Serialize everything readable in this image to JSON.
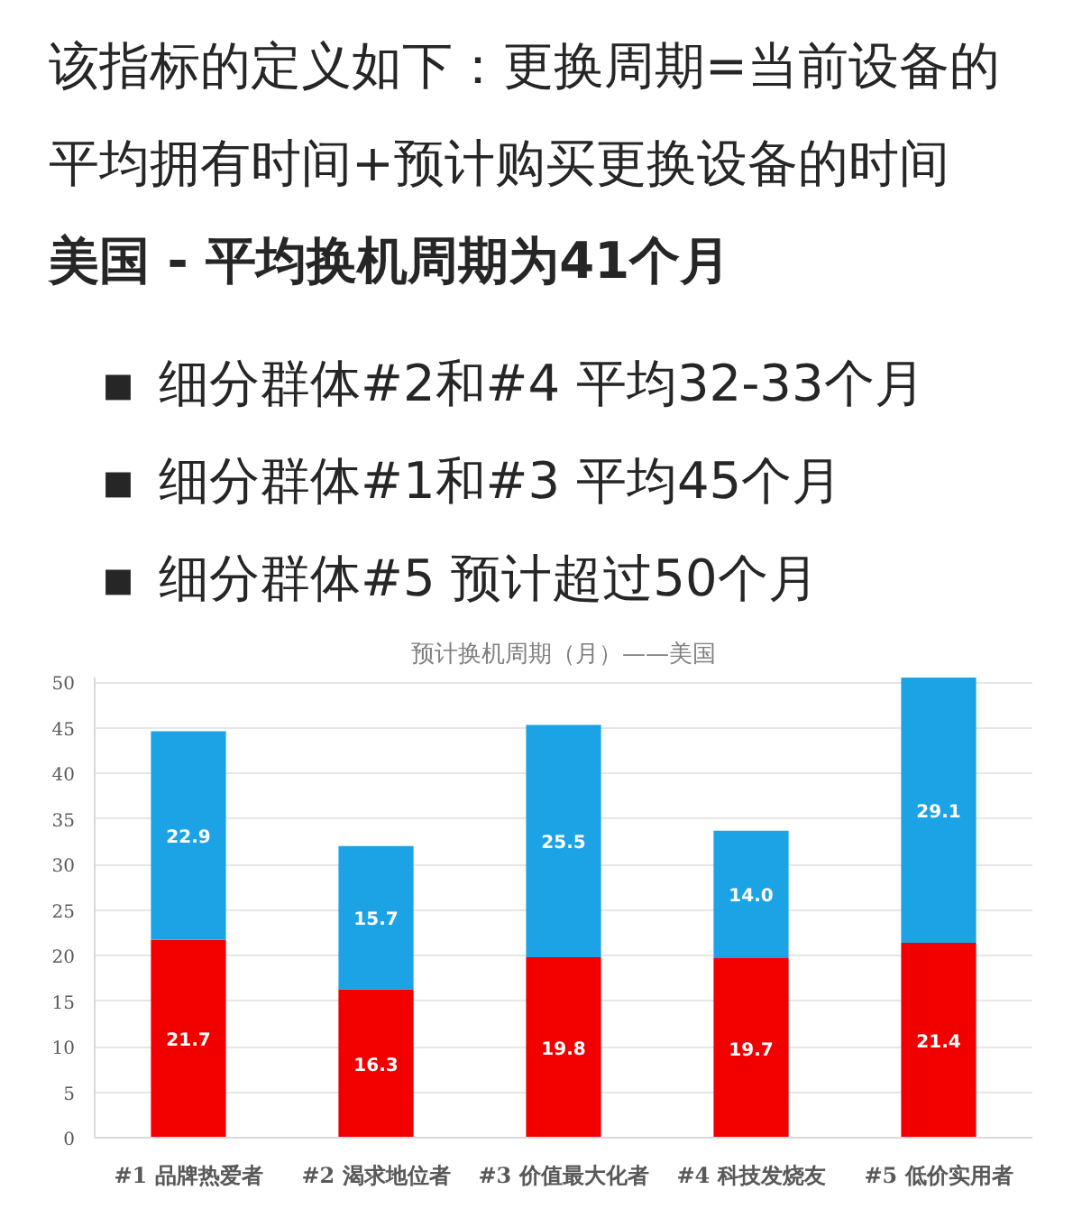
{
  "chart_data": {
    "type": "bar",
    "title": "预计换机周期（月）——美国",
    "annotations": [
      "该指标的定义如下：更换周期=当前设备的平均拥有时间+预计购买更换设备的时间",
      "美国 - 平均换机周期为41个月",
      "▪ 细分群体#2和#4 平均32-33个月",
      "▪ 细分群体#1和#3 平均45个月",
      "▪ 细分群体#5 预计超过50个月"
    ],
    "categories": [
      "#1 品牌热爱者",
      "#2 渴求地位者",
      "#3 价值最大化者",
      "#4 科技发烧友",
      "#5 低价实用者"
    ],
    "series": [
      {
        "color": "#f20000",
        "values": [
          21.7,
          16.3,
          19.8,
          19.7,
          21.4
        ],
        "value_labels": [
          "21.7",
          "16.3",
          "19.8",
          "19.7",
          "21.4"
        ]
      },
      {
        "color": "#1ba3e6",
        "values": [
          22.9,
          15.7,
          25.5,
          14.0,
          29.1
        ],
        "value_labels": [
          "22.9",
          "15.7",
          "25.5",
          "14.0",
          "29.1"
        ]
      }
    ],
    "stacked": true,
    "ylim": [
      0,
      50.5
    ],
    "yticks": [
      0,
      5,
      10,
      15,
      20,
      25,
      30,
      35,
      40,
      45,
      50
    ],
    "grid": "y"
  }
}
